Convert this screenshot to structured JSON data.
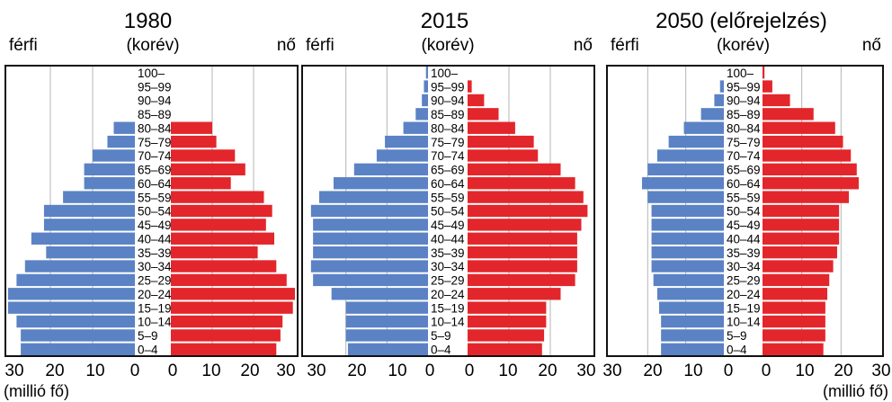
{
  "chart_data": [
    {
      "type": "bar",
      "title": "1980",
      "header": {
        "left": "férfi",
        "center": "(korév)",
        "right": "nő"
      },
      "categories": [
        "100–",
        "95–99",
        "90–94",
        "85–89",
        "80–84",
        "75–79",
        "70–74",
        "65–69",
        "60–64",
        "55–59",
        "50–54",
        "45–49",
        "40–44",
        "35–39",
        "30–34",
        "25–29",
        "20–24",
        "15–19",
        "10–14",
        "5–9",
        "0–4"
      ],
      "series": [
        {
          "name": "férfi",
          "color": "#5B82C4",
          "values": [
            0,
            0,
            0,
            0,
            5,
            6.5,
            10,
            12,
            12,
            17,
            21.5,
            21.5,
            24.5,
            21,
            26,
            28,
            30,
            30,
            28,
            27,
            27
          ]
        },
        {
          "name": "nő",
          "color": "#E3262B",
          "values": [
            0,
            0,
            0,
            0,
            10,
            11,
            15.5,
            18,
            14.5,
            22.5,
            24.5,
            23,
            25,
            21,
            25.5,
            28,
            30,
            29.5,
            27,
            26.5,
            25.5
          ]
        }
      ],
      "xlim": [
        0,
        30
      ],
      "xticks_left": [
        "30",
        "20",
        "10",
        "0"
      ],
      "xticks_right": [
        "0",
        "10",
        "20",
        "30"
      ],
      "unit_label": "(millió fő)"
    },
    {
      "type": "bar",
      "title": "2015",
      "header": {
        "left": "férfi",
        "center": "(korév)",
        "right": "nő"
      },
      "categories": [
        "100–",
        "95–99",
        "90–94",
        "85–89",
        "80–84",
        "75–79",
        "70–74",
        "65–69",
        "60–64",
        "55–59",
        "50–54",
        "45–49",
        "40–44",
        "35–39",
        "30–34",
        "25–29",
        "20–24",
        "15–19",
        "10–14",
        "5–9",
        "0–4"
      ],
      "series": [
        {
          "name": "férfi",
          "color": "#5B82C4",
          "values": [
            0.5,
            1,
            1.5,
            3,
            6,
            10.5,
            12.5,
            18,
            23,
            26.5,
            28.5,
            28,
            28,
            28,
            28.5,
            28,
            23.5,
            20,
            20,
            20,
            19.5
          ]
        },
        {
          "name": "nő",
          "color": "#E3262B",
          "values": [
            0,
            1,
            4,
            7.5,
            11.5,
            16,
            17,
            22.5,
            26,
            28,
            29,
            27.5,
            26.5,
            26.5,
            26.5,
            26,
            22.5,
            19,
            19,
            18.5,
            18
          ]
        }
      ],
      "xlim": [
        0,
        30
      ],
      "xticks_left": [
        "30",
        "20",
        "10",
        "0"
      ],
      "xticks_right": [
        "0",
        "10",
        "20",
        "30"
      ],
      "unit_label": ""
    },
    {
      "type": "bar",
      "title": "2050 (előrejelzés)",
      "header": {
        "left": "férfi",
        "center": "(korév)",
        "right": "nő"
      },
      "categories": [
        "100–",
        "95–99",
        "90–94",
        "85–89",
        "80–84",
        "75–79",
        "70–74",
        "65–69",
        "60–64",
        "55–59",
        "50–54",
        "45–49",
        "40–44",
        "35–39",
        "30–34",
        "25–29",
        "20–24",
        "15–19",
        "10–14",
        "5–9",
        "0–4"
      ],
      "series": [
        {
          "name": "férfi",
          "color": "#5B82C4",
          "values": [
            0,
            1,
            2.5,
            6,
            10.5,
            14.5,
            17.5,
            20,
            21.5,
            20,
            19,
            19,
            19,
            19,
            19,
            18.5,
            17.5,
            17,
            16.5,
            16.5,
            16.5
          ]
        },
        {
          "name": "nő",
          "color": "#E3262B",
          "values": [
            0.5,
            2.5,
            7,
            13,
            18.5,
            20.5,
            22.5,
            24,
            24.5,
            22,
            19.5,
            19.5,
            19.5,
            19,
            18,
            17,
            16.5,
            16,
            16,
            16,
            15.5
          ]
        }
      ],
      "xlim": [
        0,
        30
      ],
      "xticks_left": [
        "30",
        "20",
        "10",
        "0"
      ],
      "xticks_right": [
        "0",
        "10",
        "20",
        "30"
      ],
      "unit_label": "(millió fő)"
    }
  ]
}
